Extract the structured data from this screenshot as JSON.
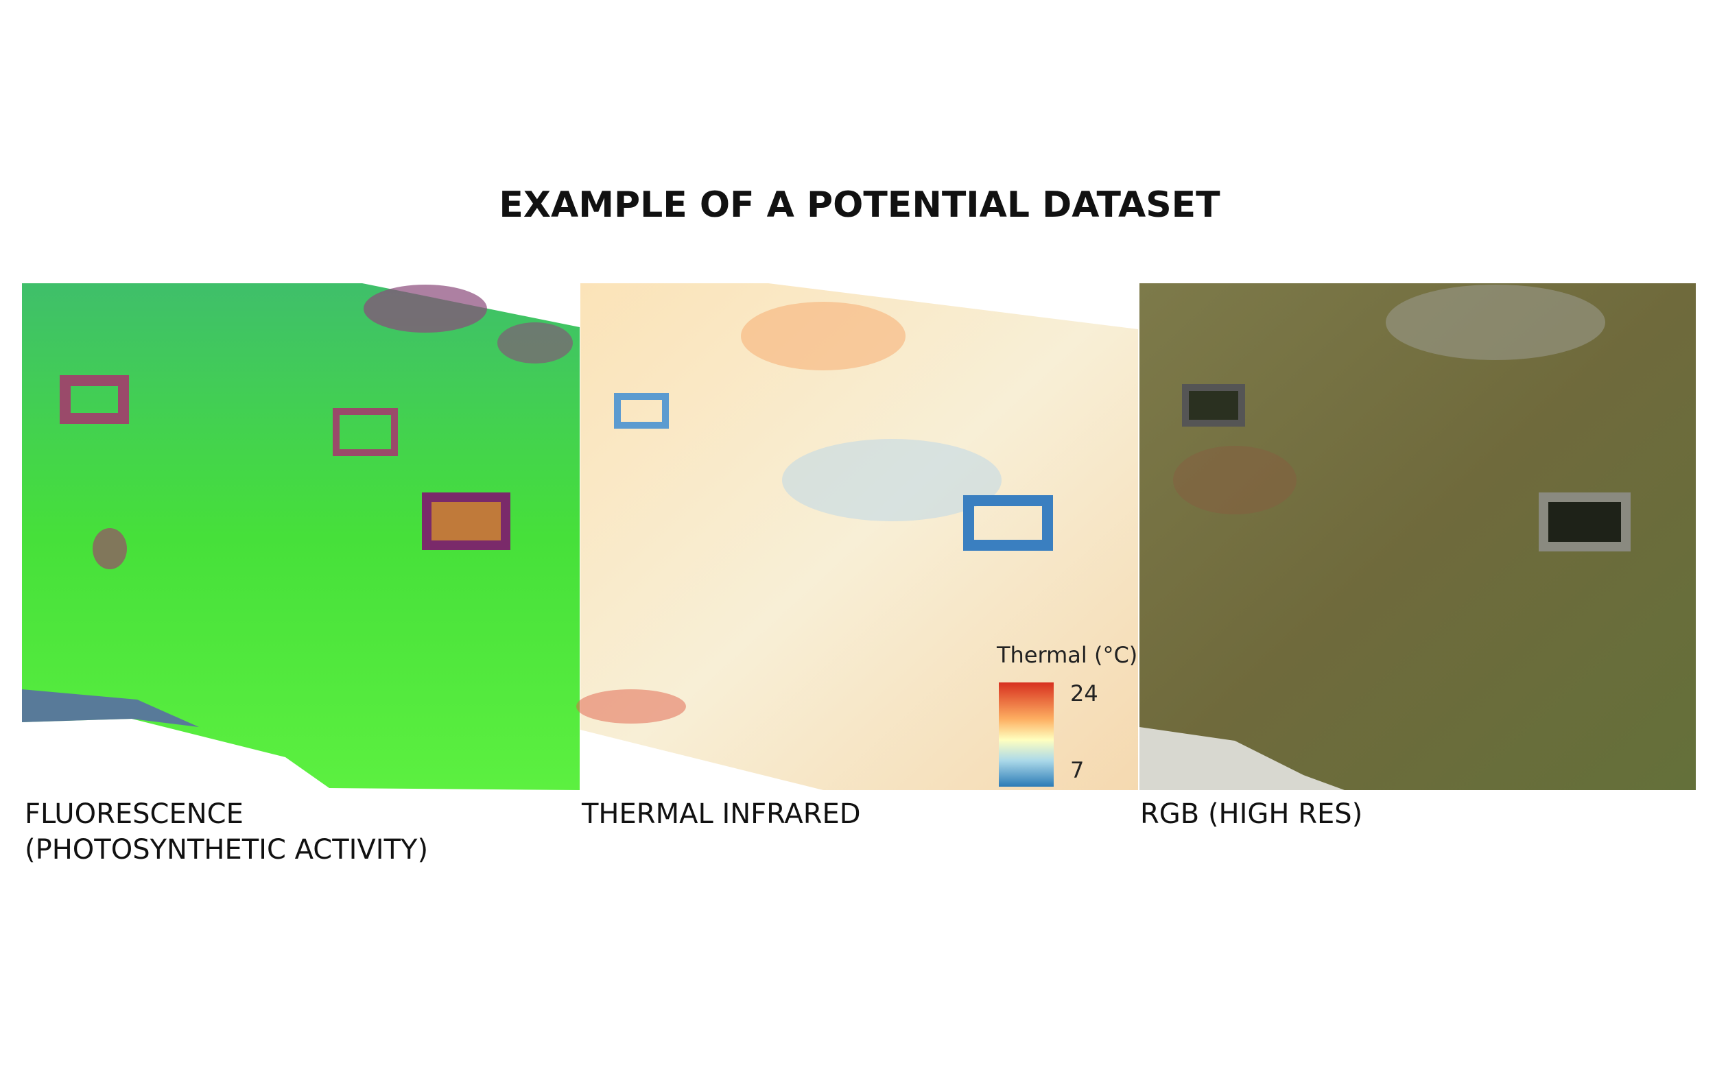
{
  "title": "EXAMPLE OF A POTENTIAL DATASET",
  "panels": [
    {
      "caption": [
        "FLUORESCENCE",
        "(PHOTOSYNTHETIC ACTIVITY)"
      ]
    },
    {
      "caption": [
        "THERMAL INFRARED"
      ],
      "legend": {
        "title": "Thermal (°C)",
        "max": 24,
        "min": 7
      }
    },
    {
      "caption": [
        "RGB (HIGH RES)"
      ]
    }
  ]
}
